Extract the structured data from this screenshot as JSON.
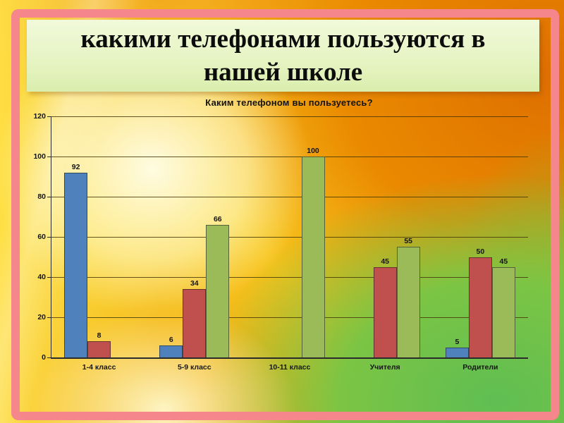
{
  "slide": {
    "title": "какими телефонами пользуются в нашей школе",
    "title_lines": [
      "какими телефонами пользуются в",
      "нашей школе"
    ]
  },
  "chart_data": {
    "type": "bar",
    "title": "Каким телефоном вы пользуетесь?",
    "categories": [
      "1-4 класс",
      "5-9 класс",
      "10-11 класс",
      "Учителя",
      "Родители"
    ],
    "series": [
      {
        "color": "#4F81BD",
        "values": [
          92,
          6,
          0,
          0,
          5
        ]
      },
      {
        "color": "#C0504D",
        "values": [
          8,
          34,
          0,
          45,
          50
        ]
      },
      {
        "color": "#9BBB59",
        "values": [
          0,
          66,
          100,
          55,
          45
        ]
      }
    ],
    "ylim": [
      0,
      120
    ],
    "yticks": [
      0,
      20,
      40,
      60,
      80,
      100,
      120
    ],
    "grid": true,
    "legend": "none",
    "data_labels": true,
    "xlabel": "",
    "ylabel": ""
  },
  "colors": {
    "frame_pink": "#F5868B",
    "title_box": "#E7F4C4",
    "bar_blue": "#4F81BD",
    "bar_red": "#C0504D",
    "bar_green": "#9BBB59"
  }
}
